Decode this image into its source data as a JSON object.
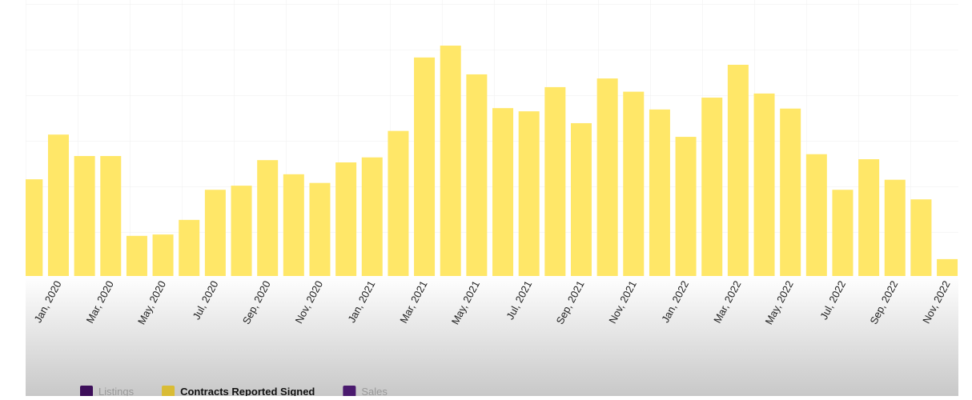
{
  "chart_data": {
    "type": "bar",
    "categories": [
      null,
      "Jan, 2020",
      null,
      "Mar, 2020",
      null,
      "May, 2020",
      null,
      "Jul, 2020",
      null,
      "Sep, 2020",
      null,
      "Nov, 2020",
      null,
      "Jan, 2021",
      null,
      "Mar, 2021",
      null,
      "May, 2021",
      null,
      "Jul, 2021",
      null,
      "Sep, 2021",
      null,
      "Nov, 2021",
      null,
      "Jan, 2022",
      null,
      "Mar, 2022",
      null,
      "May, 2022",
      null,
      "Jul, 2022",
      null,
      "Sep, 2022",
      null,
      "Nov, 2022"
    ],
    "series": [
      {
        "name": "Contracts Reported Signed",
        "color": "#ffe660",
        "values": [
          2.12,
          3.1,
          2.63,
          2.63,
          0.88,
          0.91,
          1.23,
          1.89,
          1.98,
          2.54,
          2.23,
          2.04,
          2.49,
          2.6,
          3.18,
          4.79,
          5.05,
          4.42,
          3.68,
          3.61,
          4.14,
          3.35,
          4.33,
          4.04,
          3.65,
          3.05,
          3.91,
          4.63,
          4.0,
          3.67,
          2.67,
          1.89,
          2.56,
          2.11,
          1.68,
          0.37
        ]
      }
    ],
    "ylim": [
      0,
      6.05
    ],
    "legend": [
      {
        "name": "Listings",
        "color": "#3d0f5a",
        "active": false
      },
      {
        "name": "Contracts Reported Signed",
        "color": "#d9bc35",
        "active": true
      },
      {
        "name": "Sales",
        "color": "#4a1a6e",
        "active": false
      }
    ]
  }
}
